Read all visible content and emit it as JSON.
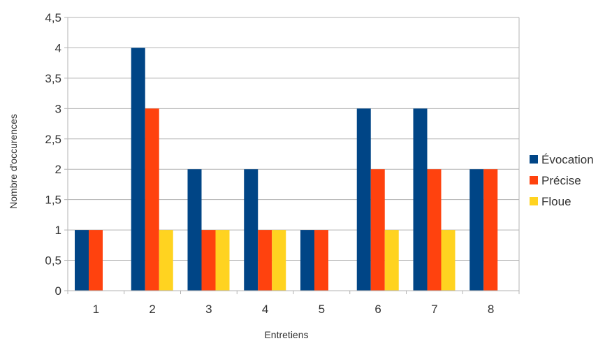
{
  "chart_data": {
    "type": "bar",
    "title": "",
    "xlabel": "Entretiens",
    "ylabel": "Nombre d'occurences",
    "categories": [
      "1",
      "2",
      "3",
      "4",
      "5",
      "6",
      "7",
      "8"
    ],
    "ylim": [
      0,
      4.5
    ],
    "y_ticks": [
      "0",
      "0,5",
      "1",
      "1,5",
      "2",
      "2,5",
      "3",
      "3,5",
      "4",
      "4,5"
    ],
    "grid": true,
    "legend_position": "right",
    "series": [
      {
        "name": "Évocation",
        "color": "#004586",
        "values": [
          1,
          4,
          2,
          2,
          1,
          3,
          3,
          2
        ]
      },
      {
        "name": "Précise",
        "color": "#ff420e",
        "values": [
          1,
          3,
          1,
          1,
          1,
          2,
          2,
          2
        ]
      },
      {
        "name": "Floue",
        "color": "#ffd320",
        "values": [
          0,
          1,
          1,
          1,
          0,
          1,
          1,
          0
        ]
      }
    ]
  }
}
